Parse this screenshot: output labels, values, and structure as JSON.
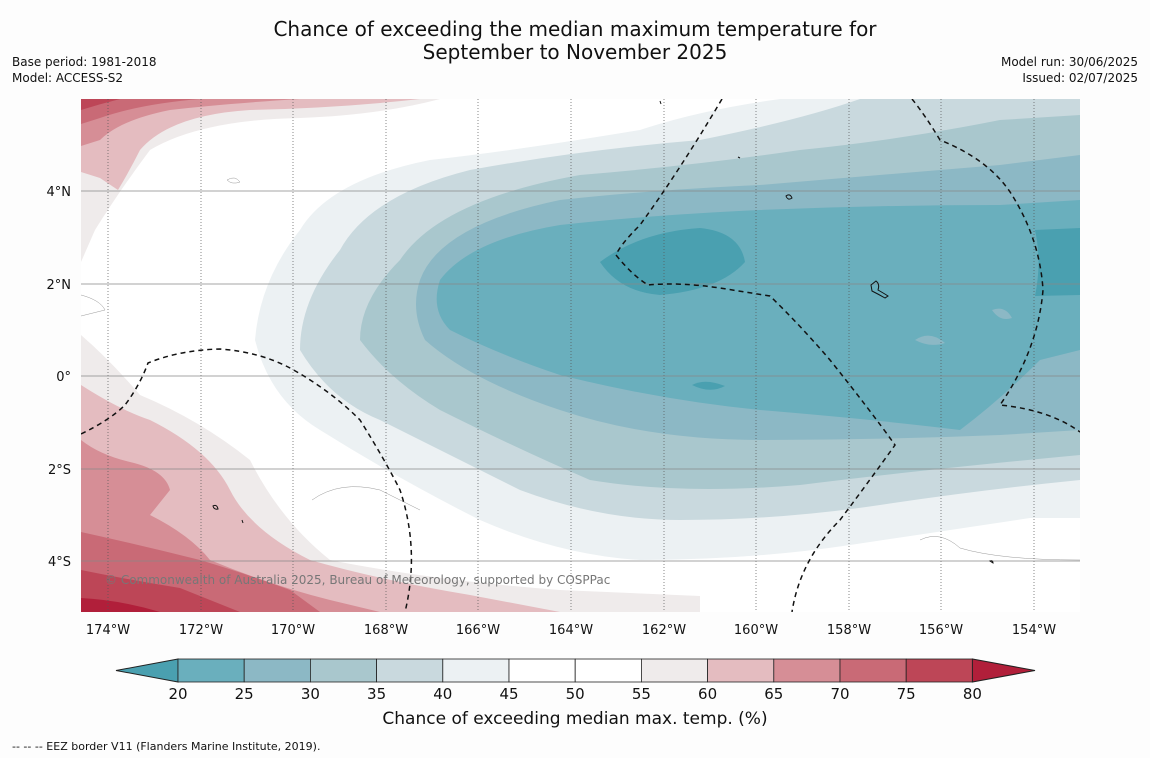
{
  "header": {
    "title_line1": "Chance of exceeding the median maximum temperature for",
    "title_line2": "September to November 2025",
    "base_period": "Base period: 1981-2018",
    "model": "Model: ACCESS-S2",
    "model_run": "Model run: 30/06/2025",
    "issued": "Issued: 02/07/2025"
  },
  "map": {
    "lon_labels": [
      "174°W",
      "172°W",
      "170°W",
      "168°W",
      "166°W",
      "164°W",
      "162°W",
      "160°W",
      "158°W",
      "156°W",
      "154°W"
    ],
    "lat_labels": [
      "4°N",
      "2°N",
      "0°",
      "2°S",
      "4°S"
    ],
    "copyright": "© Commonwealth of Australia 2025, Bureau of Meteorology, supported by COSPPac"
  },
  "colorbar": {
    "ticks": [
      "20",
      "25",
      "30",
      "35",
      "40",
      "45",
      "50",
      "55",
      "60",
      "65",
      "70",
      "75",
      "80"
    ],
    "colors": [
      "#4aa0b0",
      "#6aafbd",
      "#8cb8c5",
      "#a9c7cd",
      "#c9d9de",
      "#ecf1f3",
      "#ffffff",
      "#ffffff",
      "#efebeb",
      "#e4bcc0",
      "#d68e96",
      "#c96a76",
      "#bd4657",
      "#b11f3a"
    ],
    "title": "Chance of exceeding median max. temp. (%)"
  },
  "footnote": "--  --  -- EEZ border V11 (Flanders Marine Institute, 2019)."
}
